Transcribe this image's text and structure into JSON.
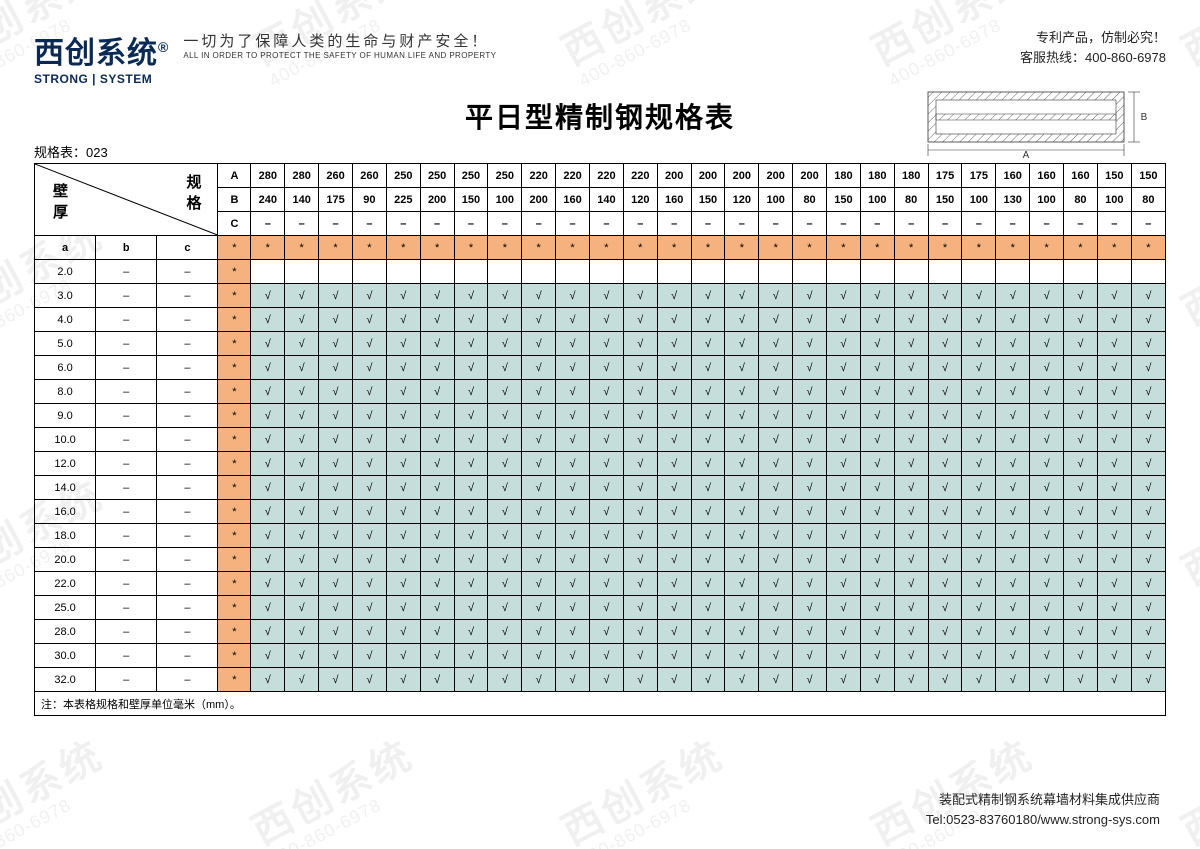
{
  "brand": {
    "logo_cn": "西创系统",
    "logo_reg": "®",
    "logo_en": "STRONG | SYSTEM",
    "slogan_cn": "一切为了保障人类的生命与财产安全！",
    "slogan_en": "ALL IN ORDER TO PROTECT THE SAFETY OF HUMAN LIFE AND PROPERTY"
  },
  "header_right": {
    "line1": "专利产品，仿制必究！",
    "line2": "客服热线：400-860-6978"
  },
  "title": "平日型精制钢规格表",
  "table_id": "规格表：023",
  "diagonal": {
    "spec_label": "规格",
    "wall_label": "壁厚"
  },
  "header_rows": {
    "labels": [
      "A",
      "B",
      "C"
    ],
    "A": [
      "280",
      "280",
      "260",
      "260",
      "250",
      "250",
      "250",
      "250",
      "220",
      "220",
      "220",
      "220",
      "200",
      "200",
      "200",
      "200",
      "200",
      "180",
      "180",
      "180",
      "175",
      "175",
      "160",
      "160",
      "160",
      "150",
      "150"
    ],
    "B": [
      "240",
      "140",
      "175",
      "90",
      "225",
      "200",
      "150",
      "100",
      "200",
      "160",
      "140",
      "120",
      "160",
      "150",
      "120",
      "100",
      "80",
      "150",
      "100",
      "80",
      "150",
      "100",
      "130",
      "100",
      "80",
      "100",
      "80"
    ],
    "C": [
      "–",
      "–",
      "–",
      "–",
      "–",
      "–",
      "–",
      "–",
      "–",
      "–",
      "–",
      "–",
      "–",
      "–",
      "–",
      "–",
      "–",
      "–",
      "–",
      "–",
      "–",
      "–",
      "–",
      "–",
      "–",
      "–",
      "–"
    ]
  },
  "sub_headers": [
    "a",
    "b",
    "c"
  ],
  "star": "*",
  "check": "√",
  "dash": "–",
  "wall_rows": [
    {
      "a": "2.0",
      "fill": "empty"
    },
    {
      "a": "3.0",
      "fill": "check"
    },
    {
      "a": "4.0",
      "fill": "check"
    },
    {
      "a": "5.0",
      "fill": "check"
    },
    {
      "a": "6.0",
      "fill": "check"
    },
    {
      "a": "8.0",
      "fill": "check"
    },
    {
      "a": "9.0",
      "fill": "check"
    },
    {
      "a": "10.0",
      "fill": "check"
    },
    {
      "a": "12.0",
      "fill": "check"
    },
    {
      "a": "14.0",
      "fill": "check"
    },
    {
      "a": "16.0",
      "fill": "check"
    },
    {
      "a": "18.0",
      "fill": "check"
    },
    {
      "a": "20.0",
      "fill": "check"
    },
    {
      "a": "22.0",
      "fill": "check"
    },
    {
      "a": "25.0",
      "fill": "check"
    },
    {
      "a": "28.0",
      "fill": "check"
    },
    {
      "a": "30.0",
      "fill": "check"
    },
    {
      "a": "32.0",
      "fill": "check"
    }
  ],
  "footnote": "注：本表格规格和壁厚单位毫米（mm）。",
  "footer": {
    "line1": "装配式精制钢系统幕墙材料集成供应商",
    "line2": "Tel:0523-83760180/www.strong-sys.com"
  },
  "watermark": {
    "big": "西创系统",
    "small": "400-860-6978"
  },
  "colors": {
    "orange": "#f5b27e",
    "teal": "#c5dedb",
    "border": "#000000",
    "brand": "#0a2a55"
  },
  "profile_labels": {
    "A": "A",
    "B": "B"
  }
}
